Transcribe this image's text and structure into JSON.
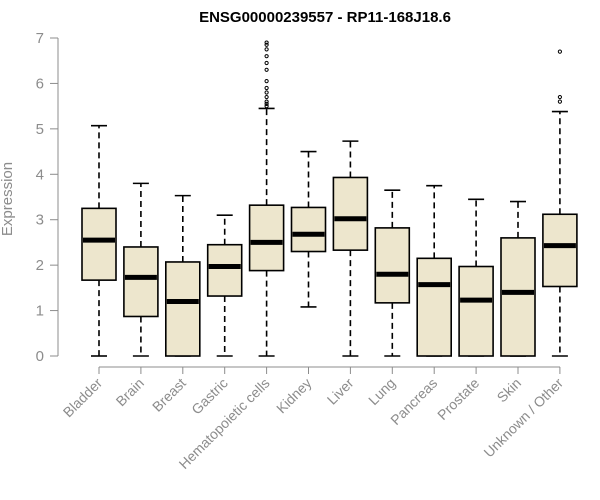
{
  "chart_data": {
    "type": "box",
    "title": "ENSG00000239557 - RP11-168J18.6",
    "xlabel": "",
    "ylabel": "Expression",
    "ylim": [
      0,
      7
    ],
    "yticks": [
      0,
      1,
      2,
      3,
      4,
      5,
      6,
      7
    ],
    "box_fill": "#ede6cd",
    "axis_color": "#8c8c8c",
    "categories": [
      "Bladder",
      "Brain",
      "Breast",
      "Gastric",
      "Hematopoietic cells",
      "Kidney",
      "Liver",
      "Lung",
      "Pancreas",
      "Prostate",
      "Skin",
      "Unknown / Other"
    ],
    "boxes": [
      {
        "min": 0.0,
        "q1": 1.67,
        "median": 2.55,
        "q3": 3.25,
        "max": 5.07,
        "outliers": []
      },
      {
        "min": 0.0,
        "q1": 0.87,
        "median": 1.73,
        "q3": 2.4,
        "max": 3.8,
        "outliers": []
      },
      {
        "min": 0.0,
        "q1": 0.0,
        "median": 1.2,
        "q3": 2.07,
        "max": 3.53,
        "outliers": []
      },
      {
        "min": 0.0,
        "q1": 1.32,
        "median": 1.97,
        "q3": 2.45,
        "max": 3.1,
        "outliers": []
      },
      {
        "min": 0.0,
        "q1": 1.88,
        "median": 2.5,
        "q3": 3.32,
        "max": 5.45,
        "outliers": [
          5.5,
          5.55,
          5.6,
          5.7,
          5.8,
          5.9,
          6.05,
          6.3,
          6.45,
          6.6,
          6.75,
          6.85,
          6.9
        ]
      },
      {
        "min": 1.08,
        "q1": 2.3,
        "median": 2.68,
        "q3": 3.27,
        "max": 4.5,
        "outliers": []
      },
      {
        "min": 0.0,
        "q1": 2.33,
        "median": 3.02,
        "q3": 3.93,
        "max": 4.73,
        "outliers": []
      },
      {
        "min": 0.0,
        "q1": 1.17,
        "median": 1.8,
        "q3": 2.82,
        "max": 3.65,
        "outliers": []
      },
      {
        "min": 0.0,
        "q1": 0.0,
        "median": 1.57,
        "q3": 2.15,
        "max": 3.75,
        "outliers": []
      },
      {
        "min": 0.0,
        "q1": 0.0,
        "median": 1.23,
        "q3": 1.97,
        "max": 3.45,
        "outliers": []
      },
      {
        "min": 0.0,
        "q1": 0.0,
        "median": 1.4,
        "q3": 2.6,
        "max": 3.4,
        "outliers": []
      },
      {
        "min": 0.0,
        "q1": 1.53,
        "median": 2.43,
        "q3": 3.12,
        "max": 5.38,
        "outliers": [
          5.6,
          5.7,
          6.7
        ]
      }
    ]
  }
}
